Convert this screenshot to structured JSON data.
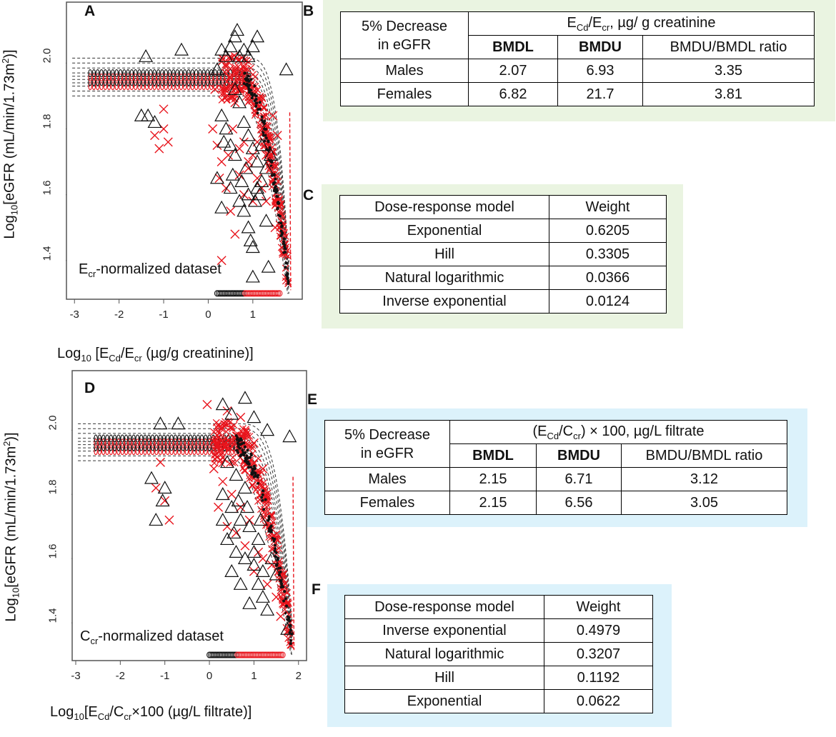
{
  "panels": {
    "a": {
      "letter": "A",
      "dataset_label_main": "E",
      "dataset_label_sub": "cr",
      "dataset_label_rest": "-normalized dataset",
      "xlabel_pre": "Log",
      "xlabel_pre_sub": "10",
      "xlabel_main": " [E",
      "xlabel_sub1": "Cd",
      "xlabel_mid": "/E",
      "xlabel_sub2": "cr",
      "xlabel_end": " (µg/g creatinine)]",
      "ylabel_pre": "Log",
      "ylabel_pre_sub": "10",
      "ylabel_main": "[eGFR (mL/min/1.73m",
      "ylabel_sup": "2",
      "ylabel_end": ")]"
    },
    "d": {
      "letter": "D",
      "dataset_label_main": "C",
      "dataset_label_sub": "cr",
      "dataset_label_rest": "-normalized dataset",
      "xlabel_pre": "Log",
      "xlabel_pre_sub": "10",
      "xlabel_main": "[E",
      "xlabel_sub1": "Cd",
      "xlabel_mid": "/C",
      "xlabel_sub2": "cr",
      "xlabel_end": "×100 (µg/L filtrate)]",
      "ylabel_pre": "Log",
      "ylabel_pre_sub": "10",
      "ylabel_main": "[eGFR (mL/min/1.73m",
      "ylabel_sup": "2",
      "ylabel_end": ")]"
    },
    "b": {
      "letter": "B"
    },
    "c": {
      "letter": "C"
    },
    "e": {
      "letter": "E"
    },
    "f": {
      "letter": "F"
    }
  },
  "table_b": {
    "corner_line1": "5% Decrease",
    "corner_line2": "in eGFR",
    "header_main": "E",
    "header_sub1": "Cd",
    "header_mid": "/E",
    "header_sub2": "cr",
    "header_end": ", µg/ g creatinine",
    "col1": "BMDL",
    "col2": "BMDU",
    "col3": "BMDU/BMDL ratio",
    "rows": [
      {
        "label": "Males",
        "bmdl": "2.07",
        "bmdu": "6.93",
        "ratio": "3.35"
      },
      {
        "label": "Females",
        "bmdl": "6.82",
        "bmdu": "21.7",
        "ratio": "3.81"
      }
    ]
  },
  "table_c": {
    "col1": "Dose-response model",
    "col2": "Weight",
    "rows": [
      {
        "model": "Exponential",
        "weight": "0.6205"
      },
      {
        "model": "Hill",
        "weight": "0.3305"
      },
      {
        "model": "Natural logarithmic",
        "weight": "0.0366"
      },
      {
        "model": "Inverse exponential",
        "weight": "0.0124"
      }
    ]
  },
  "table_e": {
    "corner_line1": "5% Decrease",
    "corner_line2": "in eGFR",
    "header_pre": "(E",
    "header_sub1": "Cd",
    "header_mid": "/C",
    "header_sub2": "cr",
    "header_end": ") × 100, µg/L filtrate",
    "col1": "BMDL",
    "col2": "BMDU",
    "col3": "BMDU/BMDL ratio",
    "rows": [
      {
        "label": "Males",
        "bmdl": "2.15",
        "bmdu": "6.71",
        "ratio": "3.12"
      },
      {
        "label": "Females",
        "bmdl": "2.15",
        "bmdu": "6.56",
        "ratio": "3.05"
      }
    ]
  },
  "table_f": {
    "col1": "Dose-response model",
    "col2": "Weight",
    "rows": [
      {
        "model": "Inverse exponential",
        "weight": "0.4979"
      },
      {
        "model": "Natural logarithmic",
        "weight": "0.3207"
      },
      {
        "model": "Hill",
        "weight": "0.1192"
      },
      {
        "model": "Exponential",
        "weight": "0.0622"
      }
    ]
  },
  "chart_data": [
    {
      "panel": "A",
      "type": "scatter",
      "xlim": [
        -3.1,
        1.9
      ],
      "ylim": [
        1.28,
        2.17
      ],
      "xticks": [
        "-3",
        "-2",
        "-1",
        "0",
        "1"
      ],
      "xtick_values": [
        -3,
        -2,
        -1,
        0,
        1
      ],
      "yticks": [
        "1.4",
        "1.6",
        "1.8",
        "2.0"
      ],
      "ytick_values": [
        1.4,
        1.6,
        1.8,
        2.0
      ],
      "colors": {
        "female": "#e8141c",
        "male": "#111111",
        "curve": "#333333",
        "fit_line": "#e8141c"
      },
      "plateau": 1.95,
      "decline_start": 0.8,
      "decline_end": 1.8,
      "bottom": 1.3,
      "triangles": [
        [
          -1.4,
          2.02
        ],
        [
          -1.5,
          1.84
        ],
        [
          -1.35,
          1.84
        ],
        [
          -1.2,
          1.82
        ],
        [
          -0.6,
          2.04
        ],
        [
          0.2,
          1.98
        ],
        [
          0.3,
          2.04
        ],
        [
          0.4,
          2.02
        ],
        [
          0.5,
          2.05
        ],
        [
          0.6,
          2.08
        ],
        [
          0.7,
          2.02
        ],
        [
          0.8,
          2.04
        ],
        [
          0.9,
          2.02
        ],
        [
          1.0,
          2.05
        ],
        [
          1.1,
          2.08
        ],
        [
          0.6,
          1.92
        ],
        [
          0.7,
          1.88
        ],
        [
          0.3,
          1.84
        ],
        [
          0.4,
          1.8
        ],
        [
          0.5,
          1.75
        ],
        [
          0.6,
          1.72
        ],
        [
          0.8,
          1.82
        ],
        [
          0.9,
          1.78
        ],
        [
          1.0,
          1.74
        ],
        [
          1.1,
          1.7
        ],
        [
          0.2,
          1.65
        ],
        [
          0.5,
          1.62
        ],
        [
          0.7,
          1.58
        ],
        [
          0.8,
          1.55
        ],
        [
          0.9,
          1.6
        ],
        [
          1.1,
          1.62
        ],
        [
          1.2,
          1.64
        ],
        [
          1.3,
          1.68
        ],
        [
          0.3,
          1.56
        ],
        [
          0.9,
          1.5
        ],
        [
          0.95,
          1.46
        ],
        [
          1.0,
          1.44
        ],
        [
          1.3,
          1.52
        ],
        [
          1.35,
          1.38
        ],
        [
          1.0,
          1.35
        ],
        [
          1.75,
          1.98
        ],
        [
          0.65,
          2.1
        ],
        [
          1.2,
          1.75
        ],
        [
          1.4,
          1.72
        ],
        [
          0.55,
          1.66
        ],
        [
          1.05,
          1.58
        ],
        [
          0.85,
          1.68
        ],
        [
          1.15,
          1.6
        ],
        [
          0.35,
          1.76
        ],
        [
          0.75,
          1.64
        ]
      ],
      "crosses": [
        [
          -1.2,
          1.78
        ],
        [
          -1.0,
          1.8
        ],
        [
          -1.1,
          1.74
        ],
        [
          -0.9,
          1.76
        ],
        [
          -1.0,
          1.86
        ],
        [
          0.1,
          1.8
        ],
        [
          0.2,
          1.75
        ],
        [
          0.3,
          1.7
        ],
        [
          0.25,
          1.65
        ],
        [
          0.4,
          1.62
        ],
        [
          0.5,
          1.55
        ],
        [
          0.6,
          1.48
        ],
        [
          0.7,
          1.66
        ],
        [
          0.8,
          1.6
        ],
        [
          0.9,
          1.68
        ],
        [
          1.0,
          1.58
        ],
        [
          1.1,
          1.65
        ],
        [
          1.2,
          1.62
        ],
        [
          1.3,
          1.72
        ],
        [
          1.4,
          1.68
        ],
        [
          1.5,
          1.5
        ],
        [
          0.3,
          1.4
        ],
        [
          0.9,
          1.7
        ],
        [
          1.1,
          1.76
        ],
        [
          1.2,
          1.8
        ],
        [
          0.15,
          1.92
        ],
        [
          0.6,
          1.88
        ],
        [
          0.8,
          1.76
        ],
        [
          1.45,
          1.84
        ],
        [
          1.55,
          1.78
        ],
        [
          1.3,
          1.58
        ],
        [
          0.45,
          1.72
        ],
        [
          0.7,
          1.74
        ],
        [
          0.55,
          1.8
        ],
        [
          1.0,
          1.72
        ]
      ]
    },
    {
      "panel": "D",
      "type": "scatter",
      "xlim": [
        -3.0,
        2.1
      ],
      "ylim": [
        1.28,
        2.17
      ],
      "xticks": [
        "-3",
        "-2",
        "-1",
        "0",
        "1",
        "2"
      ],
      "xtick_values": [
        -3,
        -2,
        -1,
        0,
        1,
        2
      ],
      "yticks": [
        "1.4",
        "1.6",
        "1.8",
        "2.0"
      ],
      "ytick_values": [
        1.4,
        1.6,
        1.8,
        2.0
      ],
      "colors": {
        "female": "#e8141c",
        "male": "#111111",
        "curve": "#333333",
        "fit_line": "#e8141c"
      },
      "plateau": 1.955,
      "decline_start": 0.6,
      "decline_end": 1.85,
      "bottom": 1.3,
      "triangles": [
        [
          -1.1,
          2.02
        ],
        [
          -1.3,
          1.85
        ],
        [
          -1.0,
          1.82
        ],
        [
          -1.05,
          1.78
        ],
        [
          -0.7,
          2.02
        ],
        [
          -1.2,
          1.72
        ],
        [
          0.3,
          2.08
        ],
        [
          0.5,
          2.05
        ],
        [
          0.8,
          2.1
        ],
        [
          1.0,
          2.04
        ],
        [
          1.3,
          2.0
        ],
        [
          1.8,
          1.98
        ],
        [
          0.4,
          1.9
        ],
        [
          0.6,
          1.86
        ],
        [
          0.8,
          1.82
        ],
        [
          0.3,
          1.8
        ],
        [
          0.5,
          1.76
        ],
        [
          0.7,
          1.72
        ],
        [
          0.9,
          1.7
        ],
        [
          1.1,
          1.66
        ],
        [
          0.4,
          1.66
        ],
        [
          0.6,
          1.62
        ],
        [
          0.8,
          1.6
        ],
        [
          1.0,
          1.58
        ],
        [
          1.2,
          1.56
        ],
        [
          0.3,
          1.72
        ],
        [
          0.5,
          1.56
        ],
        [
          0.7,
          1.52
        ],
        [
          1.1,
          1.52
        ],
        [
          1.2,
          1.48
        ],
        [
          1.3,
          1.44
        ],
        [
          1.4,
          1.6
        ],
        [
          1.5,
          1.55
        ],
        [
          1.75,
          1.38
        ],
        [
          0.9,
          1.46
        ],
        [
          1.0,
          1.62
        ],
        [
          0.55,
          1.68
        ],
        [
          0.85,
          1.76
        ],
        [
          1.15,
          1.72
        ],
        [
          0.65,
          1.78
        ]
      ],
      "crosses": [
        [
          -1.2,
          1.82
        ],
        [
          -1.0,
          1.78
        ],
        [
          -0.9,
          1.72
        ],
        [
          -1.1,
          1.9
        ],
        [
          0.1,
          1.88
        ],
        [
          0.3,
          1.84
        ],
        [
          0.5,
          1.8
        ],
        [
          0.7,
          1.76
        ],
        [
          0.9,
          1.72
        ],
        [
          1.1,
          1.62
        ],
        [
          0.6,
          1.68
        ],
        [
          0.8,
          1.64
        ],
        [
          1.0,
          1.56
        ],
        [
          1.2,
          1.6
        ],
        [
          1.3,
          1.52
        ],
        [
          1.4,
          1.58
        ],
        [
          1.5,
          1.48
        ],
        [
          0.4,
          1.7
        ],
        [
          0.2,
          1.76
        ],
        [
          1.6,
          1.42
        ],
        [
          -0.05,
          2.08
        ],
        [
          0.4,
          2.06
        ],
        [
          0.7,
          2.04
        ],
        [
          1.0,
          1.96
        ],
        [
          1.2,
          1.88
        ]
      ]
    }
  ]
}
